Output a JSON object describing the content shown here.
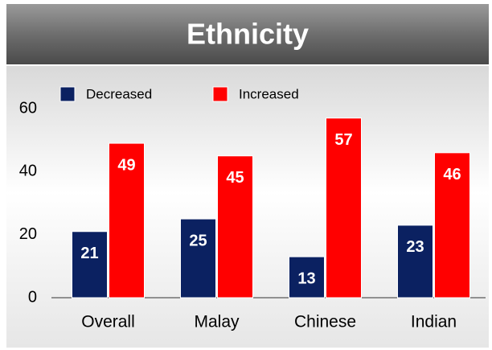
{
  "chart_data": {
    "type": "bar",
    "title": "Ethnicity",
    "categories": [
      "Overall",
      "Malay",
      "Chinese",
      "Indian"
    ],
    "series": [
      {
        "name": "Decreased",
        "color": "#0b2161",
        "values": [
          21,
          25,
          13,
          23
        ]
      },
      {
        "name": "Increased",
        "color": "#ff0000",
        "values": [
          49,
          45,
          57,
          46
        ]
      }
    ],
    "ylim": [
      0,
      60
    ],
    "yticks": [
      0,
      20,
      40,
      60
    ],
    "grid": false
  }
}
